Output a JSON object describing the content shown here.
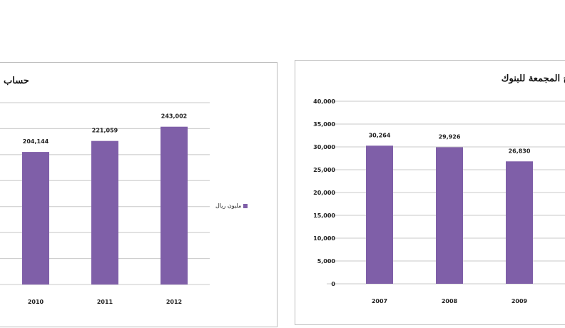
{
  "colors": {
    "bar": "#7f5fa8",
    "grid": "#c8c8c8"
  },
  "chart_data": [
    {
      "type": "bar",
      "title": "حساب",
      "categories": [
        "2010",
        "2011",
        "2012"
      ],
      "values": [
        204144,
        221059,
        243002
      ],
      "data_labels": [
        "204,144",
        "221,059",
        "243,002"
      ],
      "legend": "مليون ريال",
      "legend_position": "right",
      "ylim": [
        0,
        280000
      ],
      "grid": true
    },
    {
      "type": "bar",
      "title": "ح المجمعة للبنوك",
      "categories": [
        "2007",
        "2008",
        "2009"
      ],
      "values": [
        30264,
        29926,
        26830
      ],
      "data_labels": [
        "30,264",
        "29,926",
        "26,830"
      ],
      "yticks": [
        "0",
        "5,000",
        "10,000",
        "15,000",
        "20,000",
        "25,000",
        "30,000",
        "35,000",
        "40,000"
      ],
      "ylim": [
        0,
        40000
      ],
      "grid": true
    }
  ]
}
